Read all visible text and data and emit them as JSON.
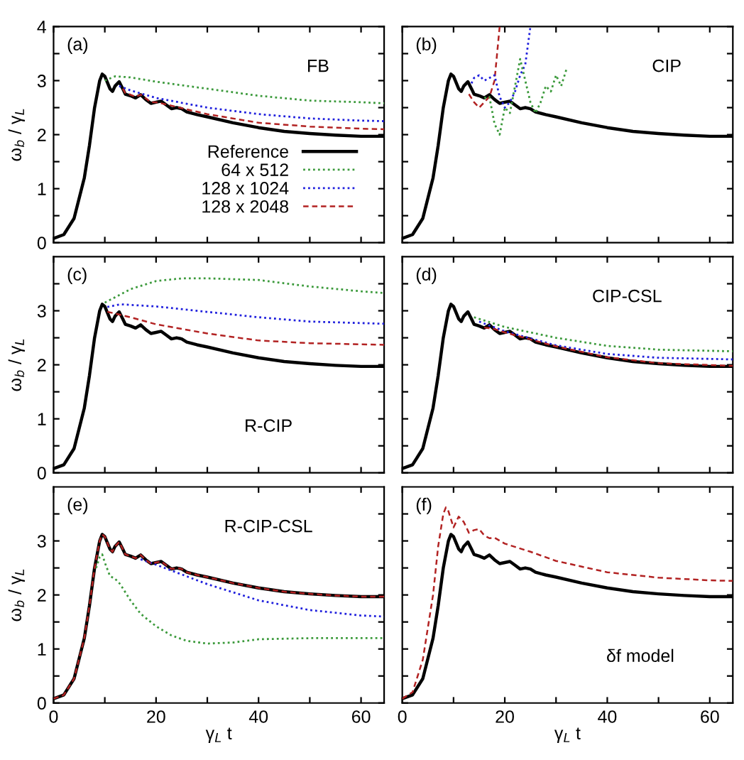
{
  "chart_data": [
    {
      "type": "line",
      "annotations": [
        "(a)",
        "FB"
      ],
      "ylabel": "ω$_{b}$ / γ$_{L}$",
      "xlim": [
        0,
        64.5
      ],
      "ylim": [
        0,
        4
      ],
      "xticks": [
        0,
        {
          "value": 10,
          "label": null
        },
        20,
        {
          "value": 30,
          "label": null
        },
        40,
        {
          "value": 50,
          "label": null
        },
        60
      ],
      "yticks": [
        0,
        {
          "value": 0.5,
          "label": null
        },
        1,
        {
          "value": 1.5,
          "label": null
        },
        2,
        {
          "value": 2.5,
          "label": null
        },
        3,
        {
          "value": 3.5,
          "label": null
        },
        4
      ],
      "tick_labels": "y",
      "legend": "bottom right",
      "marker": "none",
      "series": [
        {
          "name": "Reference",
          "color": "#000000",
          "line_style": "solid",
          "x": [
            0,
            2,
            4,
            6,
            7,
            8,
            9,
            9.5,
            10,
            11,
            11.5,
            12,
            12.8,
            13.5,
            14,
            15,
            16,
            17,
            18,
            19,
            20,
            21,
            22,
            23,
            24,
            25,
            26,
            28,
            30,
            35,
            40,
            45,
            50,
            55,
            60,
            64.5
          ],
          "values": [
            0.08,
            0.15,
            0.45,
            1.2,
            1.8,
            2.5,
            3.0,
            3.12,
            3.08,
            2.85,
            2.8,
            2.9,
            2.98,
            2.85,
            2.75,
            2.72,
            2.68,
            2.74,
            2.65,
            2.58,
            2.6,
            2.62,
            2.55,
            2.48,
            2.5,
            2.48,
            2.42,
            2.37,
            2.33,
            2.22,
            2.13,
            2.06,
            2.02,
            1.99,
            1.97,
            1.97
          ]
        },
        {
          "name": "64 x 512",
          "color": "#3c9a3c",
          "line_style": "dotted",
          "x": [
            10,
            12,
            15,
            20,
            30,
            40,
            50,
            60,
            64.5
          ],
          "values": [
            3.0,
            3.08,
            3.06,
            2.98,
            2.85,
            2.72,
            2.63,
            2.6,
            2.58
          ]
        },
        {
          "name": "128 x 1024",
          "color": "#2020dd",
          "line_style": "dotted",
          "x": [
            12.8,
            15,
            20,
            30,
            40,
            50,
            60,
            64.5
          ],
          "values": [
            2.9,
            2.82,
            2.68,
            2.5,
            2.38,
            2.3,
            2.26,
            2.25
          ]
        },
        {
          "name": "128 x 2048",
          "color": "#b22222",
          "line_style": "dashed",
          "x": [
            13.5,
            14,
            15,
            16,
            17,
            18,
            19,
            20,
            22,
            25,
            30,
            40,
            50,
            60,
            64.5
          ],
          "values": [
            2.85,
            2.77,
            2.74,
            2.7,
            2.74,
            2.67,
            2.6,
            2.6,
            2.56,
            2.49,
            2.38,
            2.22,
            2.15,
            2.11,
            2.1
          ]
        }
      ]
    },
    {
      "type": "line",
      "annotations": [
        "(b)",
        "CIP"
      ],
      "xlim": [
        0,
        64.5
      ],
      "ylim": [
        0,
        4
      ],
      "xticks": [
        0,
        {
          "value": 10,
          "label": null
        },
        20,
        {
          "value": 30,
          "label": null
        },
        40,
        {
          "value": 50,
          "label": null
        },
        60
      ],
      "yticks": [
        0,
        {
          "value": 0.5,
          "label": null
        },
        1,
        {
          "value": 1.5,
          "label": null
        },
        2,
        {
          "value": 2.5,
          "label": null
        },
        3,
        {
          "value": 3.5,
          "label": null
        },
        4
      ],
      "tick_labels": false,
      "marker": "none",
      "series": [
        {
          "color": "#b22222",
          "line_style": "dashed",
          "x": [
            13,
            14,
            15,
            16,
            17,
            18,
            18.5,
            19
          ],
          "values": [
            2.75,
            2.6,
            2.5,
            2.6,
            2.7,
            3.0,
            3.5,
            4.0
          ]
        },
        {
          "color": "#2020dd",
          "line_style": "dotted",
          "x": [
            13.5,
            14,
            15,
            16,
            17,
            18,
            19,
            20,
            21,
            22,
            23,
            24,
            25
          ],
          "values": [
            2.95,
            3.05,
            3.1,
            3.0,
            3.05,
            3.1,
            2.7,
            2.5,
            2.6,
            2.8,
            3.1,
            3.3,
            4.0
          ]
        },
        {
          "color": "#3c9a3c",
          "line_style": "dotted",
          "x": [
            16,
            17,
            18,
            19,
            20,
            21,
            22,
            23,
            24,
            25,
            26,
            27,
            28,
            29,
            30,
            31,
            32
          ],
          "values": [
            2.68,
            2.7,
            2.2,
            2.0,
            2.5,
            2.4,
            2.9,
            3.4,
            3.0,
            2.6,
            2.4,
            2.6,
            2.9,
            2.8,
            3.1,
            2.9,
            3.2
          ]
        },
        {
          "color": "#000000",
          "line_style": "solid",
          "x": [
            0,
            2,
            4,
            6,
            7,
            8,
            9,
            9.5,
            10,
            11,
            11.5,
            12,
            12.8,
            13.5,
            14,
            15,
            16,
            17,
            18,
            19,
            20,
            21,
            22,
            23,
            24,
            25,
            26,
            28,
            30,
            35,
            40,
            45,
            50,
            55,
            60,
            64.5
          ],
          "values": [
            0.08,
            0.15,
            0.45,
            1.2,
            1.8,
            2.5,
            3.0,
            3.12,
            3.08,
            2.85,
            2.8,
            2.9,
            2.98,
            2.85,
            2.75,
            2.72,
            2.68,
            2.74,
            2.65,
            2.58,
            2.6,
            2.62,
            2.55,
            2.48,
            2.5,
            2.48,
            2.42,
            2.37,
            2.33,
            2.22,
            2.13,
            2.06,
            2.02,
            1.99,
            1.97,
            1.97
          ]
        }
      ]
    },
    {
      "type": "line",
      "annotations": [
        "(c)",
        "R-CIP"
      ],
      "ylabel": "ω$_{b}$ / γ$_{L}$",
      "xlim": [
        0,
        64.5
      ],
      "ylim": [
        0,
        4
      ],
      "xticks": [
        0,
        {
          "value": 10,
          "label": null
        },
        20,
        {
          "value": 30,
          "label": null
        },
        40,
        {
          "value": 50,
          "label": null
        },
        60
      ],
      "yticks": [
        0,
        {
          "value": 0.5,
          "label": null
        },
        1,
        {
          "value": 1.5,
          "label": null
        },
        2,
        {
          "value": 2.5,
          "label": null
        },
        3,
        {
          "value": 3.5,
          "label": null
        }
      ],
      "tick_labels": "y",
      "marker": "none",
      "series": [
        {
          "color": "#3c9a3c",
          "line_style": "dotted",
          "x": [
            10,
            12,
            15,
            20,
            25,
            30,
            40,
            50,
            60,
            64.5
          ],
          "values": [
            3.15,
            3.25,
            3.4,
            3.55,
            3.6,
            3.6,
            3.57,
            3.45,
            3.36,
            3.33
          ]
        },
        {
          "color": "#2020dd",
          "line_style": "dotted",
          "x": [
            10.5,
            13,
            20,
            30,
            40,
            50,
            64.5
          ],
          "values": [
            3.07,
            3.12,
            3.08,
            2.98,
            2.88,
            2.8,
            2.76
          ]
        },
        {
          "color": "#b22222",
          "line_style": "dashed",
          "x": [
            10.5,
            12,
            15,
            20,
            30,
            40,
            50,
            64.5
          ],
          "values": [
            2.98,
            2.95,
            2.88,
            2.75,
            2.58,
            2.45,
            2.4,
            2.37
          ]
        },
        {
          "color": "#000000",
          "line_style": "solid",
          "x": [
            0,
            2,
            4,
            6,
            7,
            8,
            9,
            9.5,
            10,
            11,
            11.5,
            12,
            12.8,
            13.5,
            14,
            15,
            16,
            17,
            18,
            19,
            20,
            21,
            22,
            23,
            24,
            25,
            26,
            28,
            30,
            35,
            40,
            45,
            50,
            55,
            60,
            64.5
          ],
          "values": [
            0.08,
            0.15,
            0.45,
            1.2,
            1.8,
            2.5,
            3.0,
            3.12,
            3.08,
            2.85,
            2.8,
            2.9,
            2.98,
            2.85,
            2.75,
            2.72,
            2.68,
            2.74,
            2.65,
            2.58,
            2.6,
            2.62,
            2.55,
            2.48,
            2.5,
            2.48,
            2.42,
            2.37,
            2.33,
            2.22,
            2.13,
            2.06,
            2.02,
            1.99,
            1.97,
            1.97
          ]
        }
      ]
    },
    {
      "type": "line",
      "annotations": [
        "(d)",
        "CIP-CSL"
      ],
      "xlim": [
        0,
        64.5
      ],
      "ylim": [
        0,
        4
      ],
      "xticks": [
        0,
        {
          "value": 10,
          "label": null
        },
        20,
        {
          "value": 30,
          "label": null
        },
        40,
        {
          "value": 50,
          "label": null
        },
        60
      ],
      "yticks": [
        0,
        {
          "value": 0.5,
          "label": null
        },
        1,
        {
          "value": 1.5,
          "label": null
        },
        2,
        {
          "value": 2.5,
          "label": null
        },
        3,
        {
          "value": 3.5,
          "label": null
        }
      ],
      "tick_labels": false,
      "marker": "none",
      "series": [
        {
          "color": "#3c9a3c",
          "line_style": "dotted",
          "x": [
            14,
            20,
            30,
            40,
            50,
            64.5
          ],
          "values": [
            2.88,
            2.7,
            2.5,
            2.35,
            2.28,
            2.25
          ]
        },
        {
          "color": "#2020dd",
          "line_style": "dotted",
          "x": [
            15,
            20,
            30,
            40,
            50,
            64.5
          ],
          "values": [
            2.8,
            2.62,
            2.36,
            2.2,
            2.13,
            2.1
          ]
        },
        {
          "color": "#b22222",
          "line_style": "dashed",
          "x": [
            16,
            18,
            20,
            25,
            30,
            40,
            50,
            64.5
          ],
          "values": [
            2.69,
            2.66,
            2.6,
            2.47,
            2.34,
            2.14,
            2.03,
            1.98
          ]
        },
        {
          "color": "#000000",
          "line_style": "solid",
          "x": [
            0,
            2,
            4,
            6,
            7,
            8,
            9,
            9.5,
            10,
            11,
            11.5,
            12,
            12.8,
            13.5,
            14,
            15,
            16,
            17,
            18,
            19,
            20,
            21,
            22,
            23,
            24,
            25,
            26,
            28,
            30,
            35,
            40,
            45,
            50,
            55,
            60,
            64.5
          ],
          "values": [
            0.08,
            0.15,
            0.45,
            1.2,
            1.8,
            2.5,
            3.0,
            3.12,
            3.08,
            2.85,
            2.8,
            2.9,
            2.98,
            2.85,
            2.75,
            2.72,
            2.68,
            2.74,
            2.65,
            2.58,
            2.6,
            2.62,
            2.55,
            2.48,
            2.5,
            2.48,
            2.42,
            2.37,
            2.33,
            2.22,
            2.13,
            2.06,
            2.02,
            1.99,
            1.97,
            1.97
          ]
        }
      ]
    },
    {
      "type": "line",
      "annotations": [
        "(e)",
        "R-CIP-CSL"
      ],
      "xlabel": "γ$_{L}$ t",
      "ylabel": "ω$_{b}$ / γ$_{L}$",
      "xlim": [
        0,
        64.5
      ],
      "ylim": [
        0,
        4
      ],
      "xticks": [
        0,
        {
          "value": 10,
          "label": null
        },
        20,
        {
          "value": 30,
          "label": null
        },
        40,
        {
          "value": 50,
          "label": null
        },
        60
      ],
      "yticks": [
        0,
        {
          "value": 0.5,
          "label": null
        },
        1,
        {
          "value": 1.5,
          "label": null
        },
        2,
        {
          "value": 2.5,
          "label": null
        },
        3,
        {
          "value": 3.5,
          "label": null
        }
      ],
      "marker": "none",
      "series": [
        {
          "color": "#3c9a3c",
          "line_style": "dotted",
          "x": [
            8.3,
            9,
            9.5,
            10,
            11,
            12,
            13,
            15,
            17,
            20,
            23,
            26,
            30,
            35,
            40,
            50,
            64.5
          ],
          "values": [
            2.5,
            2.7,
            2.75,
            2.6,
            2.35,
            2.3,
            2.2,
            1.9,
            1.65,
            1.42,
            1.25,
            1.15,
            1.1,
            1.12,
            1.18,
            1.2,
            1.2
          ]
        },
        {
          "color": "#2020dd",
          "line_style": "dotted",
          "x": [
            17,
            20,
            30,
            40,
            50,
            60,
            64.5
          ],
          "values": [
            2.66,
            2.56,
            2.2,
            1.9,
            1.72,
            1.62,
            1.6
          ]
        },
        {
          "color": "#b22222",
          "line_style": "dashed",
          "x": [
            0,
            2,
            4,
            6,
            7,
            8,
            9,
            9.5,
            10,
            11,
            11.5,
            12,
            12.8,
            13.5,
            14,
            15,
            16,
            17,
            18,
            19,
            20,
            21,
            22,
            23,
            24,
            25,
            26,
            28,
            30,
            35,
            40,
            45,
            50,
            55,
            60,
            64.5
          ],
          "values": [
            0.08,
            0.15,
            0.45,
            1.2,
            1.8,
            2.5,
            3.0,
            3.12,
            3.08,
            2.85,
            2.8,
            2.9,
            2.98,
            2.85,
            2.75,
            2.72,
            2.68,
            2.74,
            2.65,
            2.58,
            2.6,
            2.62,
            2.55,
            2.48,
            2.5,
            2.48,
            2.42,
            2.37,
            2.33,
            2.22,
            2.13,
            2.06,
            2.02,
            1.99,
            1.97,
            1.97
          ]
        },
        {
          "color": "#000000",
          "line_style": "solid",
          "x": [
            0,
            2,
            4,
            6,
            7,
            8,
            9,
            9.5,
            10,
            11,
            11.5,
            12,
            12.8,
            13.5,
            14,
            15,
            16,
            17,
            18,
            19,
            20,
            21,
            22,
            23,
            24,
            25,
            26,
            28,
            30,
            35,
            40,
            45,
            50,
            55,
            60,
            64.5
          ],
          "values": [
            0.08,
            0.15,
            0.45,
            1.2,
            1.8,
            2.5,
            3.0,
            3.12,
            3.08,
            2.85,
            2.8,
            2.9,
            2.98,
            2.85,
            2.75,
            2.72,
            2.68,
            2.74,
            2.65,
            2.58,
            2.6,
            2.62,
            2.55,
            2.48,
            2.5,
            2.48,
            2.42,
            2.37,
            2.33,
            2.22,
            2.13,
            2.06,
            2.02,
            1.99,
            1.97,
            1.97
          ]
        }
      ]
    },
    {
      "type": "line",
      "annotations": [
        "(f)",
        "δf model"
      ],
      "xlabel": "γ$_{L}$ t",
      "xlim": [
        0,
        64.5
      ],
      "ylim": [
        0,
        4
      ],
      "xticks": [
        0,
        {
          "value": 10,
          "label": null
        },
        20,
        {
          "value": 30,
          "label": null
        },
        40,
        {
          "value": 50,
          "label": null
        },
        60
      ],
      "yticks": [
        0,
        {
          "value": 0.5,
          "label": null
        },
        1,
        {
          "value": 1.5,
          "label": null
        },
        2,
        {
          "value": 2.5,
          "label": null
        },
        3,
        {
          "value": 3.5,
          "label": null
        }
      ],
      "tick_labels": "x",
      "marker": "none",
      "series": [
        {
          "color": "#b22222",
          "line_style": "dashed",
          "x": [
            0,
            2,
            4,
            6,
            7,
            8,
            8.5,
            9,
            10,
            11,
            12,
            13,
            14,
            15,
            16,
            17,
            18,
            20,
            25,
            30,
            40,
            50,
            60,
            64.5
          ],
          "values": [
            0.08,
            0.2,
            0.8,
            2.0,
            2.9,
            3.5,
            3.62,
            3.55,
            3.25,
            3.45,
            3.35,
            3.15,
            3.2,
            3.22,
            3.1,
            3.05,
            3.06,
            2.95,
            2.8,
            2.63,
            2.42,
            2.32,
            2.27,
            2.26
          ]
        },
        {
          "color": "#000000",
          "line_style": "solid",
          "x": [
            0,
            2,
            4,
            6,
            7,
            8,
            9,
            9.5,
            10,
            11,
            11.5,
            12,
            12.8,
            13.5,
            14,
            15,
            16,
            17,
            18,
            19,
            20,
            21,
            22,
            23,
            24,
            25,
            26,
            28,
            30,
            35,
            40,
            45,
            50,
            55,
            60,
            64.5
          ],
          "values": [
            0.08,
            0.15,
            0.45,
            1.2,
            1.8,
            2.5,
            3.0,
            3.12,
            3.08,
            2.85,
            2.8,
            2.9,
            2.98,
            2.85,
            2.75,
            2.72,
            2.68,
            2.74,
            2.65,
            2.58,
            2.6,
            2.62,
            2.55,
            2.48,
            2.5,
            2.48,
            2.42,
            2.37,
            2.33,
            2.22,
            2.13,
            2.06,
            2.02,
            1.99,
            1.97,
            1.97
          ]
        }
      ]
    }
  ]
}
